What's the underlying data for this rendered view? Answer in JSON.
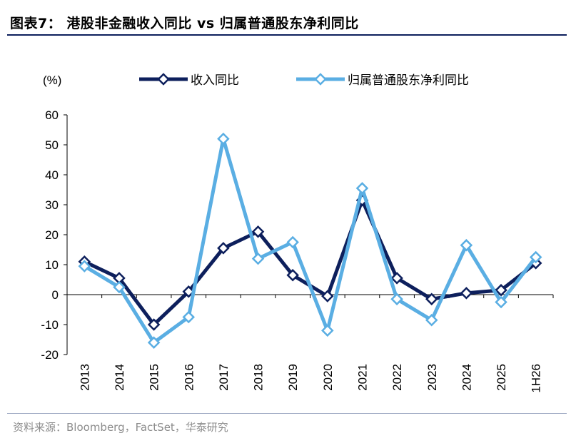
{
  "figure": {
    "title": "图表7： 港股非金融收入同比 vs 归属普通股东净利同比",
    "source": "资料来源：Bloomberg，FactSet，华泰研究"
  },
  "colors": {
    "revenue": "#0d1f5c",
    "profit": "#5aaee3",
    "rule": "#0d1f5c"
  },
  "chart_data": {
    "type": "line",
    "title": "",
    "xlabel": "",
    "ylabel": "(%)",
    "ylim": [
      -20,
      60
    ],
    "yticks": [
      -20,
      -10,
      0,
      10,
      20,
      30,
      40,
      50,
      60
    ],
    "grid": false,
    "legend_position": "top",
    "categories": [
      "2013",
      "2014",
      "2015",
      "2016",
      "2017",
      "2018",
      "2019",
      "2020",
      "2021",
      "2022",
      "2023",
      "2024",
      "2025",
      "1H26"
    ],
    "series": [
      {
        "name": "收入同比",
        "color": "#0d1f5c",
        "values": [
          11,
          5.5,
          -10,
          1,
          15.5,
          21,
          6.5,
          -0.5,
          31.5,
          5.5,
          -1.5,
          0.5,
          1.5,
          10.5
        ]
      },
      {
        "name": "归属普通股东净利同比",
        "color": "#5aaee3",
        "values": [
          9.5,
          2.5,
          -16,
          -7.5,
          52,
          12,
          17.5,
          -12,
          35.5,
          -1.5,
          -8.5,
          16.5,
          -2.5,
          12.5
        ]
      }
    ]
  }
}
